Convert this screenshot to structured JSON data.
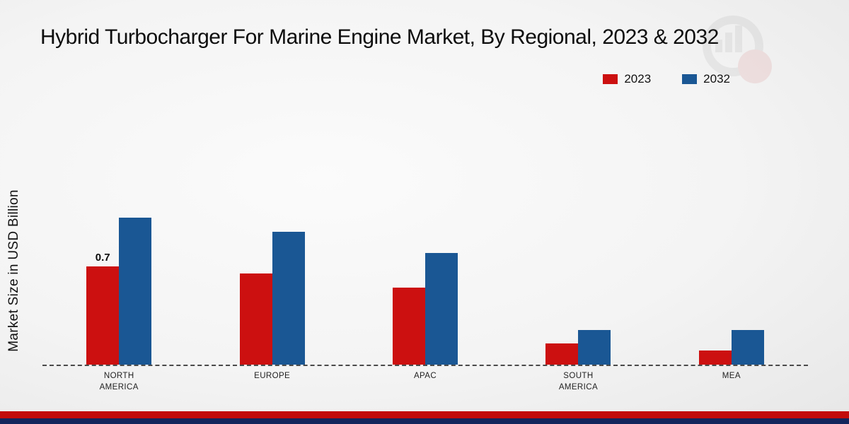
{
  "page": {
    "title": "Hybrid Turbocharger For Marine Engine Market, By Regional, 2023 & 2032"
  },
  "ylabel": "Market Size in USD Billion",
  "legend": [
    {
      "label": "2023",
      "color": "#cc1010"
    },
    {
      "label": "2032",
      "color": "#1a5794"
    }
  ],
  "chart_data": {
    "type": "bar",
    "title": "Hybrid Turbocharger For Marine Engine Market, By Regional, 2023 & 2032",
    "xlabel": "",
    "ylabel": "Market Size in USD Billion",
    "categories": [
      "NORTH AMERICA",
      "EUROPE",
      "APAC",
      "SOUTH AMERICA",
      "MEA"
    ],
    "series": [
      {
        "name": "2023",
        "color": "#cc1010",
        "values": [
          0.7,
          0.65,
          0.55,
          0.15,
          0.1
        ]
      },
      {
        "name": "2032",
        "color": "#1a5794",
        "values": [
          1.05,
          0.95,
          0.8,
          0.25,
          0.25
        ]
      }
    ],
    "annotations": [
      {
        "series_index": 0,
        "category_index": 0,
        "text": "0.7"
      }
    ],
    "ylim": [
      0,
      1.2
    ],
    "grid": false,
    "baseline_style": "dashed",
    "legend_position": "top-right"
  }
}
